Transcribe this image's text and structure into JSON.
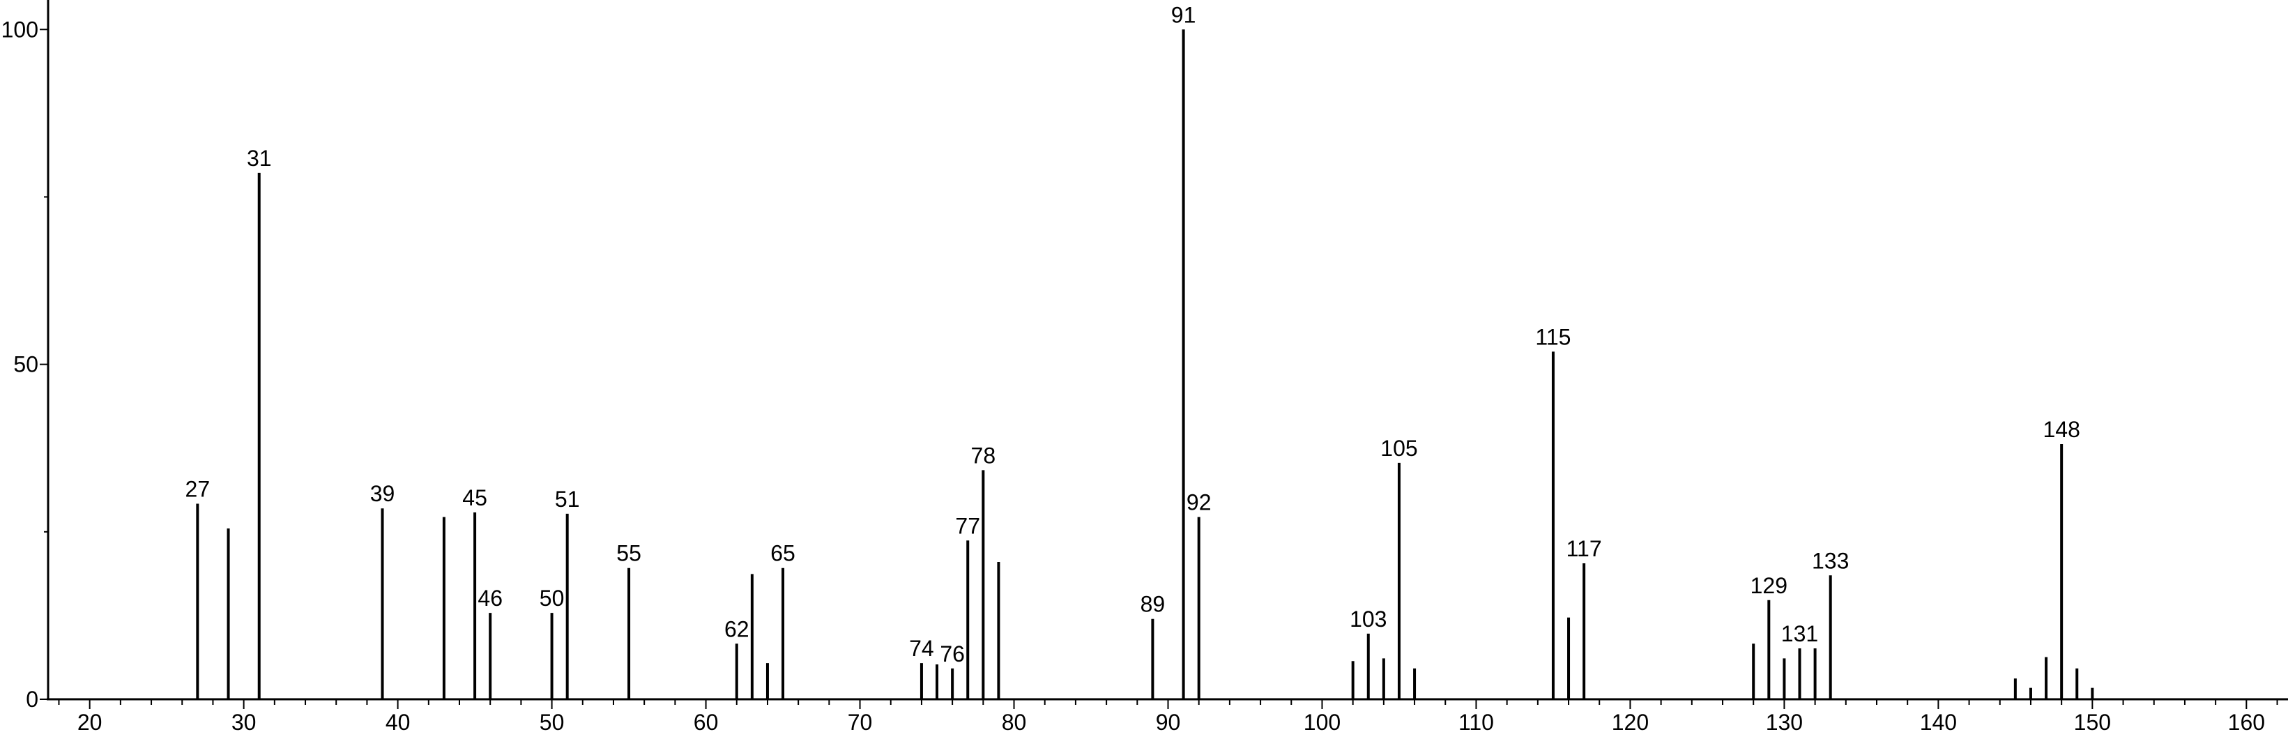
{
  "chart_data": {
    "type": "stem",
    "x": [
      27,
      29,
      31,
      39,
      43,
      45,
      46,
      50,
      51,
      55,
      62,
      63,
      64,
      65,
      74,
      75,
      76,
      77,
      78,
      79,
      89,
      91,
      92,
      102,
      103,
      104,
      105,
      106,
      115,
      116,
      117,
      128,
      129,
      130,
      131,
      132,
      133,
      145,
      146,
      147,
      148,
      149,
      150
    ],
    "values": [
      29.2,
      25.5,
      78.6,
      28.5,
      27.2,
      27.9,
      12.9,
      12.9,
      27.7,
      19.6,
      8.3,
      18.7,
      5.4,
      19.6,
      5.4,
      5.2,
      4.6,
      23.7,
      34.2,
      20.5,
      12.0,
      100,
      27.2,
      5.7,
      9.8,
      6.1,
      35.3,
      4.6,
      51.9,
      12.2,
      20.3,
      8.3,
      14.8,
      6.1,
      7.6,
      7.6,
      18.5,
      3.1,
      1.7,
      6.3,
      38.1,
      4.6,
      1.7
    ],
    "labeled": [
      true,
      false,
      true,
      true,
      false,
      true,
      true,
      true,
      true,
      true,
      true,
      false,
      false,
      true,
      true,
      false,
      true,
      true,
      true,
      false,
      true,
      true,
      true,
      false,
      true,
      false,
      true,
      false,
      true,
      false,
      true,
      false,
      true,
      false,
      true,
      false,
      true,
      false,
      false,
      false,
      true,
      false,
      false
    ],
    "color": "#000000",
    "xlim": [
      17.3,
      162.7
    ],
    "xticks": [
      20,
      30,
      40,
      50,
      60,
      70,
      80,
      90,
      100,
      110,
      120,
      130,
      140,
      150,
      160
    ],
    "xminorticks": [
      18,
      22,
      24,
      26,
      28,
      32,
      34,
      36,
      38,
      42,
      44,
      46,
      48,
      52,
      54,
      56,
      58,
      62,
      64,
      66,
      68,
      72,
      74,
      76,
      78,
      82,
      84,
      86,
      88,
      92,
      94,
      96,
      98,
      102,
      104,
      106,
      108,
      112,
      114,
      116,
      118,
      122,
      124,
      126,
      128,
      132,
      134,
      136,
      138,
      142,
      144,
      146,
      148,
      152,
      154,
      156,
      158,
      162
    ],
    "ylim": [
      0,
      104.4
    ],
    "yticks": [
      0,
      50,
      100
    ],
    "yminorticks": [
      25,
      75
    ]
  }
}
